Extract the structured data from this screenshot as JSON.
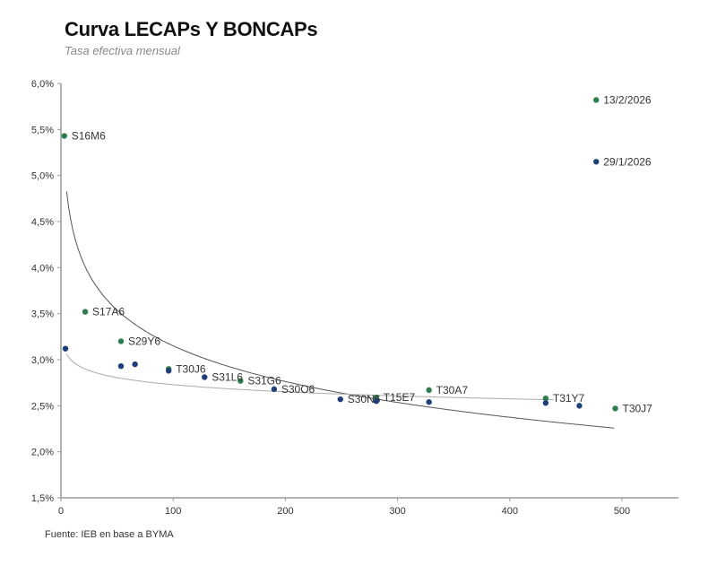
{
  "chart_data": {
    "type": "scatter",
    "title": "Curva LECAPs Y BONCAPs",
    "subtitle": "Tasa efectiva mensual",
    "source": "Fuente: IEB en base a BYMA",
    "xlabel": "",
    "ylabel": "",
    "xlim": [
      0,
      550
    ],
    "ylim": [
      1.5,
      6.0
    ],
    "x_ticks": [
      0,
      100,
      200,
      300,
      400,
      500
    ],
    "x_tick_labels": [
      "0",
      "100",
      "200",
      "300",
      "400",
      "500"
    ],
    "y_ticks": [
      1.5,
      2.0,
      2.5,
      3.0,
      3.5,
      4.0,
      4.5,
      5.0,
      5.5,
      6.0
    ],
    "y_tick_labels": [
      "1,5%",
      "2,0%",
      "2,5%",
      "3,0%",
      "3,5%",
      "4,0%",
      "4,5%",
      "5,0%",
      "5,5%",
      "6,0%"
    ],
    "grid": false,
    "series": [
      {
        "name": "13/2/2026",
        "color": "#2e7d4f",
        "points": [
          {
            "x": 3,
            "y": 5.43,
            "label": "S16M6"
          },
          {
            "x": 21.6,
            "y": 3.52,
            "label": "S17A6"
          },
          {
            "x": 53.5,
            "y": 3.2,
            "label": "S29Y6"
          },
          {
            "x": 96,
            "y": 2.9,
            "label": "T30J6"
          },
          {
            "x": 160,
            "y": 2.77,
            "label": "S31G6"
          },
          {
            "x": 281,
            "y": 2.59,
            "label": "T15E7"
          },
          {
            "x": 328,
            "y": 2.67,
            "label": "T30A7"
          },
          {
            "x": 432,
            "y": 2.58,
            "label": "T31Y7"
          },
          {
            "x": 494,
            "y": 2.47,
            "label": "T30J7"
          },
          {
            "x": 477,
            "y": 5.82,
            "label": "13/2/2026"
          }
        ],
        "trend": {
          "type": "log",
          "a": -0.56,
          "b": 5.73,
          "x_range": [
            5,
            494
          ]
        }
      },
      {
        "name": "29/1/2026",
        "color": "#1f3f7a",
        "points": [
          {
            "x": 4,
            "y": 3.12,
            "label": ""
          },
          {
            "x": 53.5,
            "y": 2.93,
            "label": ""
          },
          {
            "x": 66,
            "y": 2.95,
            "label": ""
          },
          {
            "x": 96,
            "y": 2.88,
            "label": ""
          },
          {
            "x": 128,
            "y": 2.81,
            "label": "S31L6"
          },
          {
            "x": 190,
            "y": 2.68,
            "label": "S30O6"
          },
          {
            "x": 249,
            "y": 2.57,
            "label": "S30N6"
          },
          {
            "x": 281,
            "y": 2.55,
            "label": ""
          },
          {
            "x": 328,
            "y": 2.54,
            "label": ""
          },
          {
            "x": 432,
            "y": 2.53,
            "label": ""
          },
          {
            "x": 462,
            "y": 2.5,
            "label": ""
          },
          {
            "x": 477,
            "y": 5.15,
            "label": "29/1/2026"
          }
        ],
        "trend": {
          "type": "log",
          "a": -0.111,
          "b": 3.24,
          "x_range": [
            5,
            440
          ]
        }
      }
    ]
  }
}
